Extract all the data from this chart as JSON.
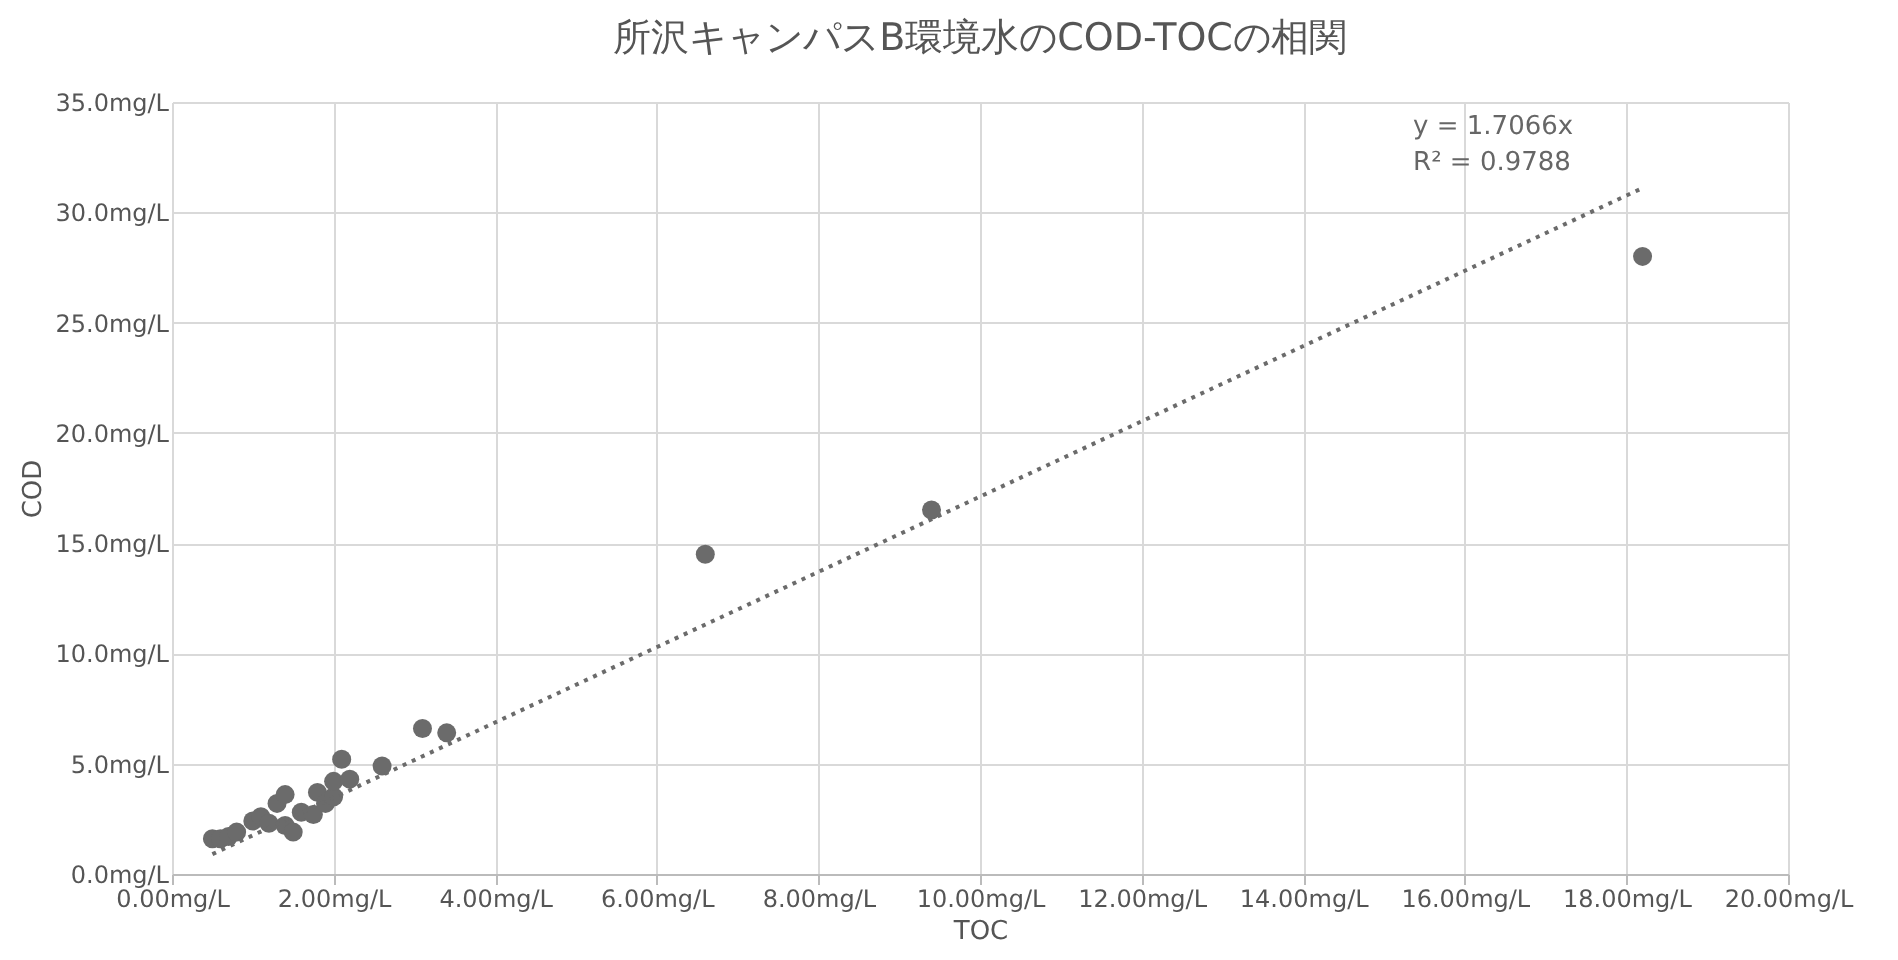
{
  "chart_data": {
    "type": "scatter",
    "title": "所沢キャンパスB環境水のCOD-TOCの相関",
    "xlabel": "TOC",
    "ylabel": "COD",
    "xlim": [
      0,
      20
    ],
    "ylim": [
      0,
      35
    ],
    "xticks": [
      {
        "value": 0,
        "label": "0.00mg/L"
      },
      {
        "value": 2,
        "label": "2.00mg/L"
      },
      {
        "value": 4,
        "label": "4.00mg/L"
      },
      {
        "value": 6,
        "label": "6.00mg/L"
      },
      {
        "value": 8,
        "label": "8.00mg/L"
      },
      {
        "value": 10,
        "label": "10.00mg/L"
      },
      {
        "value": 12,
        "label": "12.00mg/L"
      },
      {
        "value": 14,
        "label": "14.00mg/L"
      },
      {
        "value": 16,
        "label": "16.00mg/L"
      },
      {
        "value": 18,
        "label": "18.00mg/L"
      },
      {
        "value": 20,
        "label": "20.00mg/L"
      }
    ],
    "yticks": [
      {
        "value": 0,
        "label": "0.0mg/L"
      },
      {
        "value": 5,
        "label": "5.0mg/L"
      },
      {
        "value": 10,
        "label": "10.0mg/L"
      },
      {
        "value": 15,
        "label": "15.0mg/L"
      },
      {
        "value": 20,
        "label": "20.0mg/L"
      },
      {
        "value": 25,
        "label": "25.0mg/L"
      },
      {
        "value": 30,
        "label": "30.0mg/L"
      },
      {
        "value": 35,
        "label": "35.0mg/L"
      }
    ],
    "grid": true,
    "marker": "circle",
    "annotations": [
      "y = 1.7066x",
      "R² = 0.9788"
    ],
    "series": [
      {
        "color": "#6b6b6b",
        "x": [
          0.5,
          0.6,
          0.7,
          0.8,
          1.0,
          1.1,
          1.2,
          1.3,
          1.4,
          1.4,
          1.5,
          1.6,
          1.75,
          1.8,
          1.9,
          2.0,
          2.0,
          2.1,
          2.2,
          2.6,
          3.1,
          3.4,
          6.6,
          9.4,
          18.2
        ],
        "values": [
          1.6,
          1.6,
          1.7,
          1.9,
          2.4,
          2.6,
          2.3,
          3.2,
          2.2,
          3.6,
          1.9,
          2.8,
          2.7,
          3.7,
          3.2,
          3.5,
          4.2,
          5.2,
          4.3,
          4.9,
          6.6,
          6.4,
          14.5,
          16.5,
          28.0
        ]
      },
      {
        "type": "line",
        "color": "#6b6b6b",
        "line_style": "dotted",
        "marker": "none",
        "x": [
          0.5,
          18.2
        ],
        "values": [
          0.9,
          31.1
        ]
      }
    ]
  }
}
